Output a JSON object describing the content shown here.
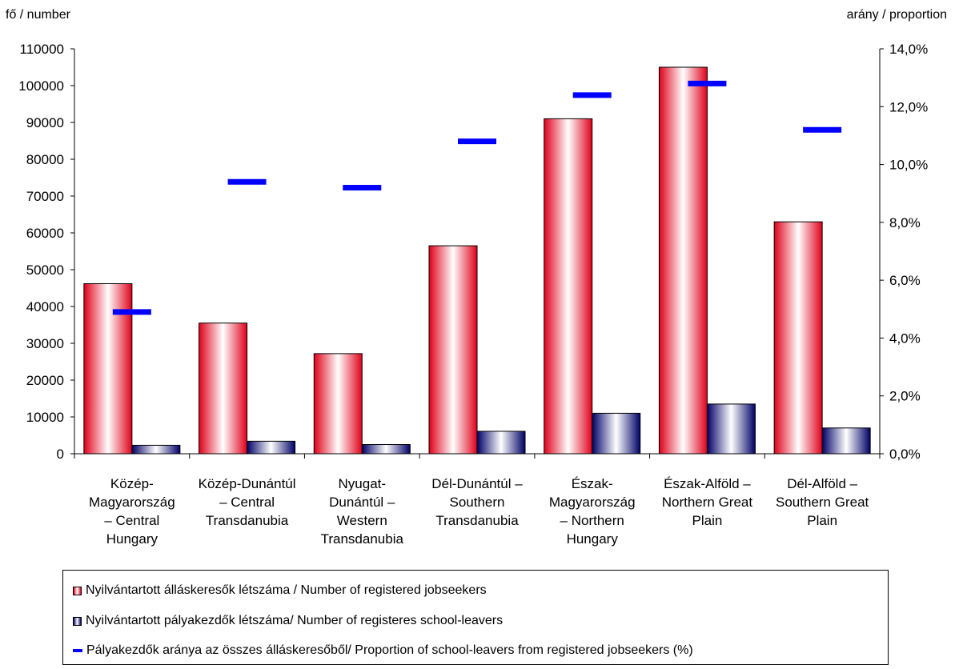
{
  "chart_data": {
    "type": "bar",
    "title": "",
    "left_axis_label": "fő / number",
    "right_axis_label": "arány / proportion",
    "categories": [
      [
        "Közép-",
        "Magyarország",
        "– Central",
        "Hungary"
      ],
      [
        "Közép-Dunántúl",
        "– Central",
        "Transdanubia"
      ],
      [
        "Nyugat-",
        "Dunántúl –",
        "Western",
        "Transdanubia"
      ],
      [
        "Dél-Dunántúl –",
        "Southern",
        "Transdanubia"
      ],
      [
        "Észak-",
        "Magyarország",
        "– Northern",
        "Hungary"
      ],
      [
        "Észak-Alföld –",
        "Northern Great",
        "Plain"
      ],
      [
        "Dél-Alföld –",
        "Southern Great",
        "Plain"
      ]
    ],
    "left_axis": {
      "min": 0,
      "max": 110000,
      "ticks": [
        0,
        10000,
        20000,
        30000,
        40000,
        50000,
        60000,
        70000,
        80000,
        90000,
        100000,
        110000
      ]
    },
    "right_axis": {
      "min": 0,
      "max": 14,
      "ticks": [
        "0,0%",
        "2,0%",
        "4,0%",
        "6,0%",
        "8,0%",
        "10,0%",
        "12,0%",
        "14,0%"
      ]
    },
    "series": [
      {
        "name": "Nyilvántartott álláskeresők létszáma / Number of registered jobseekers",
        "kind": "bar",
        "axis": "left",
        "color": "#e0001a",
        "values": [
          46200,
          35500,
          27200,
          56500,
          91000,
          105000,
          63000
        ]
      },
      {
        "name": "Nyilvántartott pályakezdők létszáma/ Number of registeres school-leavers",
        "kind": "bar",
        "axis": "left",
        "color": "#000066",
        "values": [
          2300,
          3400,
          2500,
          6100,
          11000,
          13500,
          7000
        ]
      },
      {
        "name": "Pályakezdők aránya az összes álláskeresőből/ Proportion of school-leavers from registered jobseekers (%)",
        "kind": "marker",
        "axis": "right",
        "color": "#0000ff",
        "values": [
          4.9,
          9.4,
          9.2,
          10.8,
          12.4,
          12.8,
          11.2
        ]
      }
    ],
    "legend_position": "bottom",
    "grid": false
  }
}
